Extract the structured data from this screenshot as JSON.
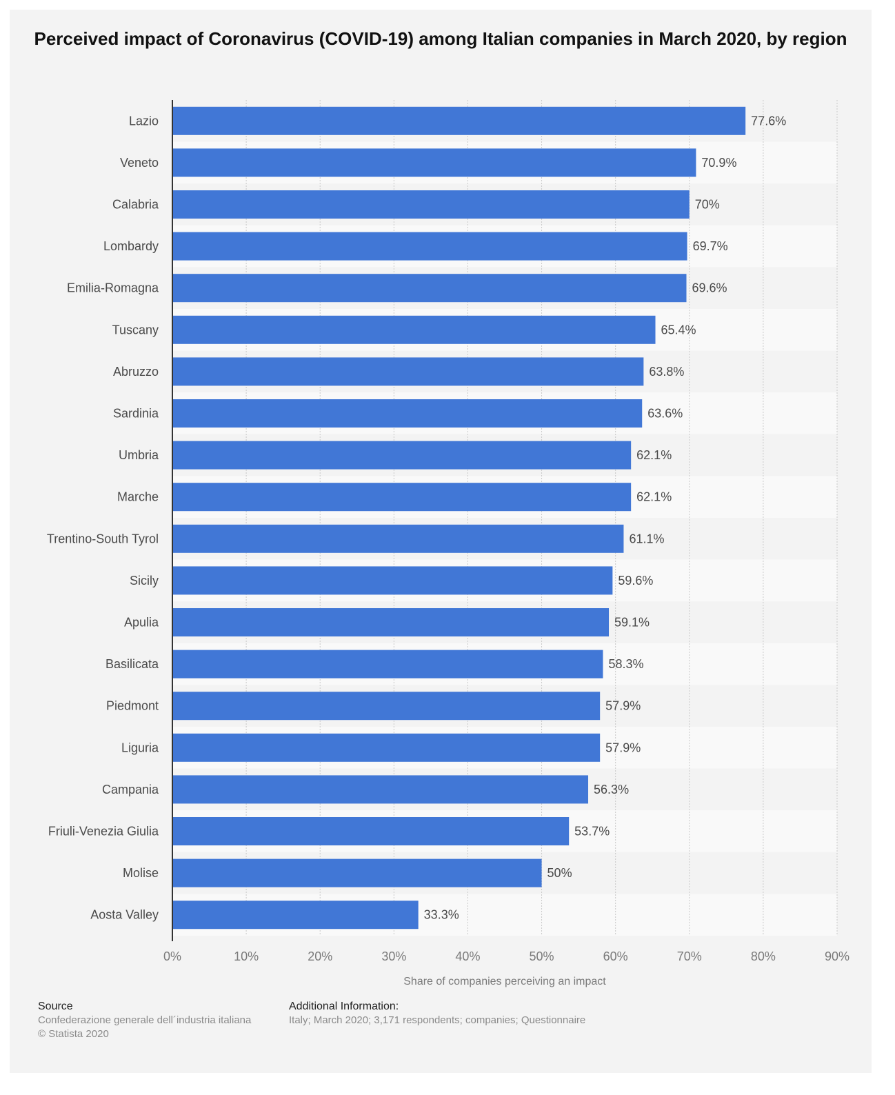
{
  "chart_data": {
    "type": "bar",
    "orientation": "horizontal",
    "title": "Perceived impact of Coronavirus (COVID-19) among Italian companies in March 2020, by region",
    "xlabel": "Share of companies perceiving an impact",
    "categories": [
      "Lazio",
      "Veneto",
      "Calabria",
      "Lombardy",
      "Emilia-Romagna",
      "Tuscany",
      "Abruzzo",
      "Sardinia",
      "Umbria",
      "Marche",
      "Trentino-South Tyrol",
      "Sicily",
      "Apulia",
      "Basilicata",
      "Piedmont",
      "Liguria",
      "Campania",
      "Friuli-Venezia Giulia",
      "Molise",
      "Aosta Valley"
    ],
    "values": [
      77.6,
      70.9,
      70,
      69.7,
      69.6,
      65.4,
      63.8,
      63.6,
      62.1,
      62.1,
      61.1,
      59.6,
      59.1,
      58.3,
      57.9,
      57.9,
      56.3,
      53.7,
      50,
      33.3
    ],
    "value_labels": [
      "77.6%",
      "70.9%",
      "70%",
      "69.7%",
      "69.6%",
      "65.4%",
      "63.8%",
      "63.6%",
      "62.1%",
      "62.1%",
      "61.1%",
      "59.6%",
      "59.1%",
      "58.3%",
      "57.9%",
      "57.9%",
      "56.3%",
      "53.7%",
      "50%",
      "33.3%"
    ],
    "xlim": [
      0,
      90
    ],
    "ticks": [
      0,
      10,
      20,
      30,
      40,
      50,
      60,
      70,
      80,
      90
    ],
    "tick_labels": [
      "0%",
      "10%",
      "20%",
      "30%",
      "40%",
      "50%",
      "60%",
      "70%",
      "80%",
      "90%"
    ],
    "grid": true,
    "bar_color": "#4177d6"
  },
  "footer": {
    "source_heading": "Source",
    "source_text": "Confederazione generale dell´industria italiana",
    "copyright": "© Statista 2020",
    "info_heading": "Additional Information:",
    "info_text": "Italy; March 2020; 3,171 respondents; companies; Questionnaire"
  }
}
